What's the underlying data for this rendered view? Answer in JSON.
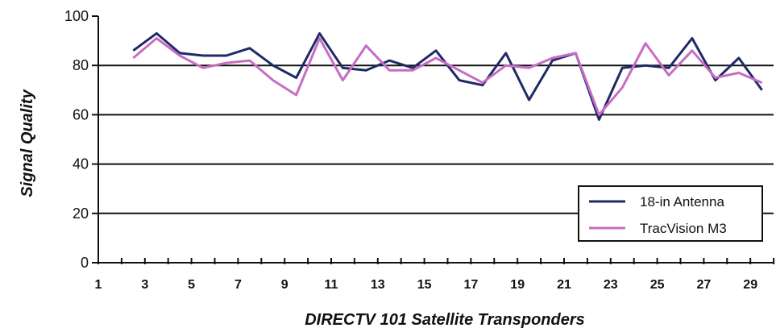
{
  "chart_data": {
    "type": "line",
    "ylabel": "Signal Quality",
    "xlabel": "DIRECTV 101 Satellite Transponders",
    "ylim": [
      0,
      100
    ],
    "xlim": [
      1,
      30
    ],
    "yticks": [
      0,
      20,
      40,
      60,
      80,
      100
    ],
    "xtick_labels": [
      "1",
      "3",
      "5",
      "7",
      "9",
      "11",
      "13",
      "15",
      "17",
      "19",
      "21",
      "23",
      "25",
      "27",
      "29"
    ],
    "gridlines_y": [
      20,
      40,
      60,
      80
    ],
    "legend_position": "bottom-right",
    "x": [
      2.5,
      3.5,
      4.5,
      5.5,
      6.5,
      7.5,
      8.5,
      9.5,
      10.5,
      11.5,
      12.5,
      13.5,
      14.5,
      15.5,
      16.5,
      17.5,
      18.5,
      19.5,
      20.5,
      21.5,
      22.5,
      23.5,
      24.5,
      25.5,
      26.5,
      27.5,
      28.5,
      29.5
    ],
    "series": [
      {
        "name": "18-in Antenna",
        "color": "#1e2a66",
        "values": [
          86,
          93,
          85,
          84,
          84,
          87,
          80,
          75,
          93,
          79,
          78,
          82,
          79,
          86,
          74,
          72,
          85,
          66,
          82,
          85,
          58,
          79,
          80,
          79,
          91,
          74,
          83,
          70
        ]
      },
      {
        "name": "TracVision M3",
        "color": "#c86cc4",
        "values": [
          83,
          91,
          84,
          79,
          81,
          82,
          74,
          68,
          91,
          74,
          88,
          78,
          78,
          83,
          78,
          73,
          80,
          79,
          83,
          85,
          60,
          71,
          89,
          76,
          86,
          75,
          77,
          73
        ]
      }
    ]
  }
}
